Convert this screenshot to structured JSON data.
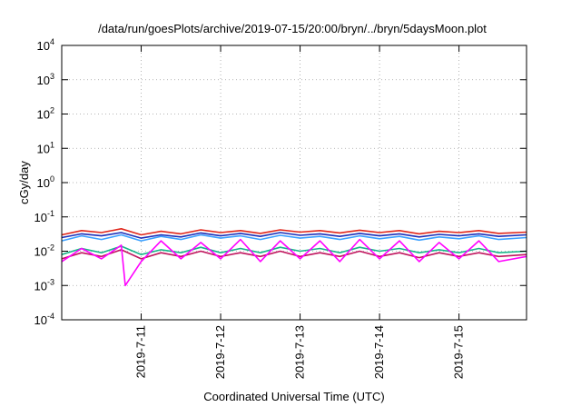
{
  "chart_data": {
    "type": "line",
    "title": "/data/run/goesPlots/archive/2019-07-15/20:00/bryn/../bryn/5daysMoon.plot",
    "xlabel": "Coordinated Universal Time (UTC)",
    "ylabel": "cGy/day",
    "yscale": "log",
    "ylim": [
      0.0001,
      10000
    ],
    "xlim": [
      0,
      5.85
    ],
    "grid": true,
    "x_ticks": [
      {
        "label": "2019-7-11",
        "pos": 1
      },
      {
        "label": "2019-7-12",
        "pos": 2
      },
      {
        "label": "2019-7-13",
        "pos": 3
      },
      {
        "label": "2019-7-14",
        "pos": 4
      },
      {
        "label": "2019-7-15",
        "pos": 5
      }
    ],
    "y_ticks": [
      {
        "base": "10",
        "exp": "-4",
        "value": 0.0001
      },
      {
        "base": "10",
        "exp": "-3",
        "value": 0.001
      },
      {
        "base": "10",
        "exp": "-2",
        "value": 0.01
      },
      {
        "base": "10",
        "exp": "-1",
        "value": 0.1
      },
      {
        "base": "10",
        "exp": "0",
        "value": 1
      },
      {
        "base": "10",
        "exp": "1",
        "value": 10
      },
      {
        "base": "10",
        "exp": "2",
        "value": 100
      },
      {
        "base": "10",
        "exp": "3",
        "value": 1000
      },
      {
        "base": "10",
        "exp": "4",
        "value": 10000
      }
    ],
    "series": [
      {
        "color": "#e0261b",
        "x": [
          0,
          0.25,
          0.5,
          0.75,
          1,
          1.25,
          1.5,
          1.75,
          2,
          2.25,
          2.5,
          2.75,
          3,
          3.25,
          3.5,
          3.75,
          4,
          4.25,
          4.5,
          4.75,
          5,
          5.25,
          5.5,
          5.85
        ],
        "values": [
          0.03,
          0.04,
          0.035,
          0.045,
          0.03,
          0.038,
          0.032,
          0.042,
          0.035,
          0.04,
          0.033,
          0.042,
          0.036,
          0.04,
          0.034,
          0.041,
          0.035,
          0.04,
          0.032,
          0.038,
          0.035,
          0.04,
          0.033,
          0.036
        ]
      },
      {
        "color": "#1c2fb8",
        "x": [
          0,
          0.25,
          0.5,
          0.75,
          1,
          1.25,
          1.5,
          1.75,
          2,
          2.25,
          2.5,
          2.75,
          3,
          3.25,
          3.5,
          3.75,
          4,
          4.25,
          4.5,
          4.75,
          5,
          5.25,
          5.5,
          5.85
        ],
        "values": [
          0.025,
          0.032,
          0.028,
          0.035,
          0.024,
          0.03,
          0.026,
          0.034,
          0.028,
          0.033,
          0.027,
          0.035,
          0.029,
          0.032,
          0.027,
          0.033,
          0.028,
          0.032,
          0.026,
          0.031,
          0.028,
          0.032,
          0.027,
          0.03
        ]
      },
      {
        "color": "#3aa0ff",
        "x": [
          0,
          0.25,
          0.5,
          0.75,
          1,
          1.25,
          1.5,
          1.75,
          2,
          2.25,
          2.5,
          2.75,
          3,
          3.25,
          3.5,
          3.75,
          4,
          4.25,
          4.5,
          4.75,
          5,
          5.25,
          5.5,
          5.85
        ],
        "values": [
          0.02,
          0.028,
          0.022,
          0.03,
          0.02,
          0.027,
          0.022,
          0.03,
          0.024,
          0.028,
          0.022,
          0.029,
          0.024,
          0.027,
          0.022,
          0.028,
          0.023,
          0.027,
          0.021,
          0.026,
          0.023,
          0.028,
          0.022,
          0.025
        ]
      },
      {
        "color": "#19b58a",
        "x": [
          0,
          0.25,
          0.5,
          0.75,
          1,
          1.25,
          1.5,
          1.75,
          2,
          2.25,
          2.5,
          2.75,
          3,
          3.25,
          3.5,
          3.75,
          4,
          4.25,
          4.5,
          4.75,
          5,
          5.25,
          5.5,
          5.85
        ],
        "values": [
          0.008,
          0.012,
          0.009,
          0.014,
          0.008,
          0.011,
          0.009,
          0.013,
          0.009,
          0.012,
          0.009,
          0.013,
          0.01,
          0.012,
          0.009,
          0.013,
          0.01,
          0.012,
          0.009,
          0.011,
          0.009,
          0.012,
          0.009,
          0.01
        ]
      },
      {
        "color": "#c0155e",
        "x": [
          0,
          0.25,
          0.5,
          0.75,
          1,
          1.25,
          1.5,
          1.75,
          2,
          2.25,
          2.5,
          2.75,
          3,
          3.25,
          3.5,
          3.75,
          4,
          4.25,
          4.5,
          4.75,
          5,
          5.25,
          5.5,
          5.85
        ],
        "values": [
          0.006,
          0.009,
          0.007,
          0.011,
          0.006,
          0.009,
          0.007,
          0.01,
          0.007,
          0.009,
          0.007,
          0.01,
          0.007,
          0.009,
          0.007,
          0.01,
          0.007,
          0.009,
          0.0065,
          0.009,
          0.007,
          0.009,
          0.007,
          0.008
        ]
      },
      {
        "color": "#ff00ff",
        "x": [
          0,
          0.25,
          0.5,
          0.75,
          0.8,
          1,
          1.25,
          1.5,
          1.75,
          2,
          2.25,
          2.5,
          2.75,
          3,
          3.25,
          3.5,
          3.75,
          4,
          4.25,
          4.5,
          4.75,
          5,
          5.25,
          5.5,
          5.85
        ],
        "values": [
          0.005,
          0.012,
          0.006,
          0.015,
          0.001,
          0.005,
          0.02,
          0.006,
          0.018,
          0.006,
          0.022,
          0.005,
          0.02,
          0.006,
          0.02,
          0.005,
          0.022,
          0.006,
          0.02,
          0.005,
          0.018,
          0.006,
          0.02,
          0.005,
          0.007
        ]
      }
    ]
  }
}
